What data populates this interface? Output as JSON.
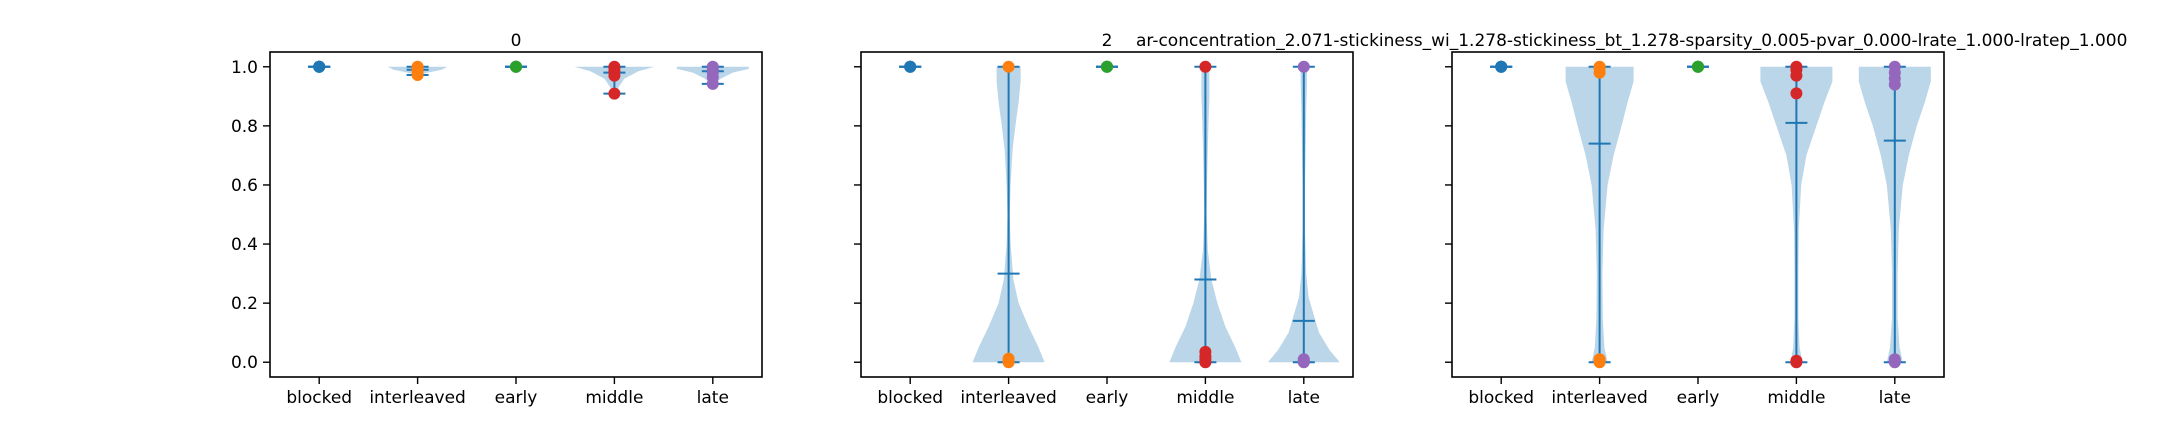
{
  "figure": {
    "suptitle": "ar-concentration_2.071-stickiness_wi_1.278-stickiness_bt_1.278-sparsity_0.005-pvar_0.000-lrate_1.000-lratep_1.000"
  },
  "colors": {
    "violin_fill": "#1f77b4",
    "violin_line": "#1f77b4",
    "categories": [
      "#1f77b4",
      "#ff7f0e",
      "#2ca02c",
      "#d62728",
      "#9467bd"
    ]
  },
  "chart_data": [
    {
      "type": "violin",
      "title": "0",
      "categories": [
        "blocked",
        "interleaved",
        "early",
        "middle",
        "late"
      ],
      "ylim": [
        -0.05,
        1.05
      ],
      "yticks": [
        0.0,
        0.2,
        0.4,
        0.6,
        0.8,
        1.0
      ],
      "ytick_labels": [
        "0.0",
        "0.2",
        "0.4",
        "0.6",
        "0.8",
        "1.0"
      ],
      "show_yticklabels": true,
      "series": [
        {
          "category": "blocked",
          "min": 1.0,
          "max": 1.0,
          "mean": 1.0,
          "density": [
            [
              1.0,
              0.12
            ]
          ],
          "points": [
            1.0,
            1.0,
            1.0,
            1.0
          ]
        },
        {
          "category": "interleaved",
          "min": 0.972,
          "max": 1.0,
          "mean": 0.99,
          "density": [
            [
              0.972,
              0.05
            ],
            [
              0.98,
              0.25
            ],
            [
              0.99,
              0.6
            ],
            [
              1.0,
              0.75
            ]
          ],
          "points": [
            0.972,
            0.985,
            0.992,
            1.0
          ]
        },
        {
          "category": "early",
          "min": 1.0,
          "max": 1.0,
          "mean": 1.0,
          "density": [
            [
              1.0,
              0.12
            ]
          ],
          "points": [
            1.0,
            1.0,
            1.0
          ]
        },
        {
          "category": "middle",
          "min": 0.909,
          "max": 1.0,
          "mean": 0.98,
          "density": [
            [
              0.909,
              0.05
            ],
            [
              0.93,
              0.1
            ],
            [
              0.96,
              0.25
            ],
            [
              0.985,
              0.6
            ],
            [
              1.0,
              1.0
            ]
          ],
          "points": [
            0.909,
            0.97,
            0.985,
            0.995,
            1.0
          ]
        },
        {
          "category": "late",
          "min": 0.942,
          "max": 1.0,
          "mean": 0.985,
          "density": [
            [
              0.942,
              0.05
            ],
            [
              0.96,
              0.2
            ],
            [
              0.98,
              0.5
            ],
            [
              0.993,
              0.9
            ],
            [
              1.0,
              0.9
            ]
          ],
          "points": [
            0.942,
            0.965,
            0.98,
            0.992,
            1.0
          ]
        }
      ]
    },
    {
      "type": "violin",
      "title": "2",
      "categories": [
        "blocked",
        "interleaved",
        "early",
        "middle",
        "late"
      ],
      "ylim": [
        -0.05,
        1.05
      ],
      "yticks": [
        0.0,
        0.2,
        0.4,
        0.6,
        0.8,
        1.0
      ],
      "ytick_labels": [
        "0.0",
        "0.2",
        "0.4",
        "0.6",
        "0.8",
        "1.0"
      ],
      "show_yticklabels": false,
      "series": [
        {
          "category": "blocked",
          "min": 1.0,
          "max": 1.0,
          "mean": 1.0,
          "density": [
            [
              1.0,
              0.12
            ]
          ],
          "points": [
            1.0,
            1.0,
            1.0
          ]
        },
        {
          "category": "interleaved",
          "min": 0.0,
          "max": 1.0,
          "mean": 0.3,
          "density": [
            [
              0.0,
              0.9
            ],
            [
              0.05,
              0.75
            ],
            [
              0.12,
              0.5
            ],
            [
              0.2,
              0.25
            ],
            [
              0.28,
              0.12
            ],
            [
              0.4,
              0.05
            ],
            [
              0.5,
              0.03
            ],
            [
              0.6,
              0.05
            ],
            [
              0.72,
              0.1
            ],
            [
              0.8,
              0.17
            ],
            [
              0.88,
              0.25
            ],
            [
              0.95,
              0.3
            ],
            [
              1.0,
              0.3
            ]
          ],
          "points": [
            0.0,
            0.005,
            0.012,
            1.0
          ]
        },
        {
          "category": "early",
          "min": 1.0,
          "max": 1.0,
          "mean": 1.0,
          "density": [
            [
              1.0,
              0.12
            ]
          ],
          "points": [
            1.0,
            1.0,
            1.0
          ]
        },
        {
          "category": "middle",
          "min": 0.0,
          "max": 1.0,
          "mean": 0.28,
          "density": [
            [
              0.0,
              0.9
            ],
            [
              0.05,
              0.75
            ],
            [
              0.12,
              0.5
            ],
            [
              0.2,
              0.3
            ],
            [
              0.28,
              0.15
            ],
            [
              0.38,
              0.06
            ],
            [
              0.5,
              0.03
            ],
            [
              0.6,
              0.04
            ],
            [
              0.72,
              0.06
            ],
            [
              0.82,
              0.08
            ],
            [
              0.9,
              0.1
            ],
            [
              1.0,
              0.1
            ]
          ],
          "points": [
            0.0,
            0.01,
            0.02,
            0.035,
            1.0
          ]
        },
        {
          "category": "late",
          "min": 0.0,
          "max": 1.0,
          "mean": 0.14,
          "density": [
            [
              0.0,
              0.9
            ],
            [
              0.04,
              0.65
            ],
            [
              0.1,
              0.38
            ],
            [
              0.16,
              0.25
            ],
            [
              0.22,
              0.12
            ],
            [
              0.3,
              0.06
            ],
            [
              0.45,
              0.03
            ],
            [
              0.6,
              0.03
            ],
            [
              0.75,
              0.05
            ],
            [
              0.85,
              0.06
            ],
            [
              0.95,
              0.08
            ],
            [
              1.0,
              0.08
            ]
          ],
          "points": [
            0.0,
            0.005,
            0.01,
            1.0
          ]
        }
      ]
    },
    {
      "type": "violin",
      "title": "",
      "categories": [
        "blocked",
        "interleaved",
        "early",
        "middle",
        "late"
      ],
      "ylim": [
        -0.05,
        1.05
      ],
      "yticks": [
        0.0,
        0.2,
        0.4,
        0.6,
        0.8,
        1.0
      ],
      "ytick_labels": [
        "0.0",
        "0.2",
        "0.4",
        "0.6",
        "0.8",
        "1.0"
      ],
      "show_yticklabels": false,
      "series": [
        {
          "category": "blocked",
          "min": 1.0,
          "max": 1.0,
          "mean": 1.0,
          "density": [
            [
              1.0,
              0.12
            ]
          ],
          "points": [
            1.0,
            1.0,
            1.0
          ]
        },
        {
          "category": "interleaved",
          "min": 0.0,
          "max": 1.0,
          "mean": 0.74,
          "density": [
            [
              0.0,
              0.2
            ],
            [
              0.05,
              0.12
            ],
            [
              0.15,
              0.08
            ],
            [
              0.3,
              0.07
            ],
            [
              0.45,
              0.1
            ],
            [
              0.6,
              0.2
            ],
            [
              0.7,
              0.35
            ],
            [
              0.8,
              0.55
            ],
            [
              0.88,
              0.7
            ],
            [
              0.95,
              0.85
            ],
            [
              1.0,
              0.85
            ]
          ],
          "points": [
            0.0,
            0.005,
            0.01,
            0.98,
            0.995,
            1.0
          ]
        },
        {
          "category": "early",
          "min": 1.0,
          "max": 1.0,
          "mean": 1.0,
          "density": [
            [
              1.0,
              0.12
            ]
          ],
          "points": [
            1.0,
            1.0,
            1.0
          ]
        },
        {
          "category": "middle",
          "min": 0.0,
          "max": 1.0,
          "mean": 0.81,
          "density": [
            [
              0.0,
              0.15
            ],
            [
              0.05,
              0.08
            ],
            [
              0.15,
              0.05
            ],
            [
              0.3,
              0.05
            ],
            [
              0.45,
              0.06
            ],
            [
              0.6,
              0.12
            ],
            [
              0.7,
              0.25
            ],
            [
              0.8,
              0.5
            ],
            [
              0.88,
              0.7
            ],
            [
              0.95,
              0.9
            ],
            [
              1.0,
              0.9
            ]
          ],
          "points": [
            0.0,
            0.005,
            0.91,
            0.97,
            0.99,
            1.0
          ]
        },
        {
          "category": "late",
          "min": 0.0,
          "max": 1.0,
          "mean": 0.75,
          "density": [
            [
              0.0,
              0.2
            ],
            [
              0.05,
              0.12
            ],
            [
              0.15,
              0.07
            ],
            [
              0.3,
              0.07
            ],
            [
              0.45,
              0.1
            ],
            [
              0.6,
              0.2
            ],
            [
              0.7,
              0.35
            ],
            [
              0.8,
              0.55
            ],
            [
              0.88,
              0.75
            ],
            [
              0.95,
              0.9
            ],
            [
              1.0,
              0.9
            ]
          ],
          "points": [
            0.0,
            0.005,
            0.01,
            0.94,
            0.96,
            0.98,
            1.0
          ]
        }
      ]
    }
  ]
}
